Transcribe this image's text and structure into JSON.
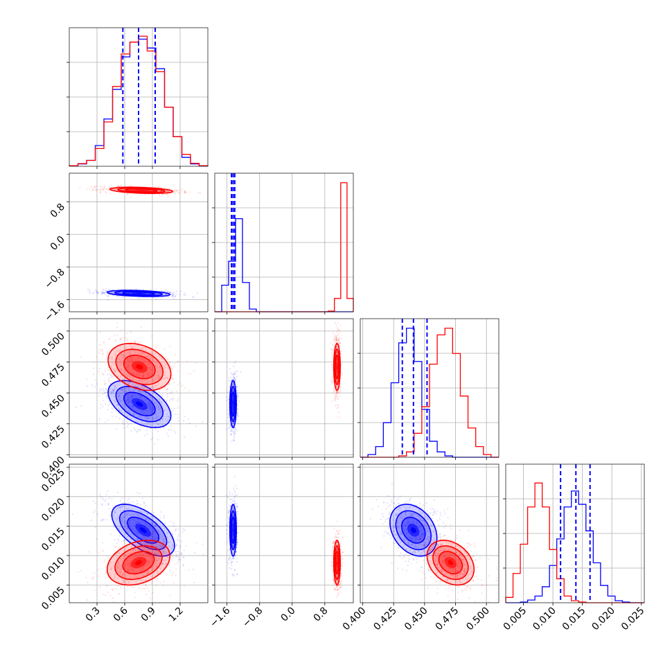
{
  "chart_data": {
    "type": "corner",
    "grid": true,
    "series": [
      {
        "color": "#0000ff"
      },
      {
        "color": "#ff0000"
      }
    ],
    "params": [
      {
        "range": [
          0.0,
          1.5
        ],
        "ticks": [
          0.3,
          0.6,
          0.9,
          1.2
        ],
        "tick_labels": [
          "0.3",
          "0.6",
          "0.9",
          "1.2"
        ]
      },
      {
        "range": [
          -1.9,
          1.5
        ],
        "ticks": [
          -1.6,
          -0.8,
          0.0,
          0.8
        ],
        "tick_labels": [
          "−1.6",
          "−0.8",
          "0.0",
          "0.8"
        ]
      },
      {
        "range": [
          0.398,
          0.51
        ],
        "ticks": [
          0.4,
          0.425,
          0.45,
          0.475,
          0.5
        ],
        "tick_labels": [
          "0.400",
          "0.425",
          "0.450",
          "0.475",
          "0.500"
        ]
      },
      {
        "range": [
          0.002,
          0.0255
        ],
        "ticks": [
          0.005,
          0.01,
          0.015,
          0.02,
          0.025
        ],
        "tick_labels": [
          "0.005",
          "0.010",
          "0.015",
          "0.020",
          "0.025"
        ]
      }
    ],
    "quantiles_blue": [
      [
        0.58,
        0.75,
        0.93
      ],
      [
        -1.49,
        -1.45,
        -1.41
      ],
      [
        0.432,
        0.441,
        0.452
      ],
      [
        0.0113,
        0.0139,
        0.0163
      ]
    ],
    "histograms": [
      {
        "ymax": 45,
        "blue": [
          0.2,
          0.8,
          2,
          7,
          16,
          26,
          37,
          42,
          43,
          40,
          33,
          20,
          10,
          3,
          0.8,
          0.1
        ],
        "red": [
          0.2,
          0.9,
          2,
          6,
          15,
          27,
          38,
          42,
          44,
          39,
          32,
          20,
          10,
          4,
          1,
          0.2
        ]
      },
      {
        "ymax": 100,
        "blue": [
          0,
          20,
          38,
          70,
          22,
          2,
          0,
          0,
          0,
          0,
          0,
          0,
          0,
          0,
          0,
          0,
          0,
          0,
          0,
          0
        ],
        "red": [
          0,
          0,
          0,
          0,
          0,
          0,
          0,
          0,
          0,
          0,
          0,
          0,
          0,
          0,
          0,
          0,
          0,
          0,
          0.5,
          10,
          97,
          10
        ]
      },
      {
        "ymax": 100,
        "blue": [
          0,
          2,
          8,
          26,
          56,
          86,
          97,
          72,
          36,
          12,
          4,
          1,
          0,
          0,
          0,
          0,
          0,
          0
        ],
        "red": [
          0,
          0,
          0,
          0,
          0,
          1,
          4,
          18,
          38,
          70,
          92,
          97,
          78,
          46,
          22,
          8,
          2,
          0
        ]
      },
      {
        "ymax": 100,
        "blue": [
          0,
          0,
          0.5,
          2,
          5,
          12,
          28,
          48,
          72,
          84,
          74,
          54,
          30,
          13,
          5,
          1.5,
          0.5,
          0,
          0
        ],
        "red": [
          4,
          22,
          44,
          72,
          90,
          72,
          40,
          18,
          5,
          1.5,
          0.5,
          0,
          0,
          0,
          0,
          0,
          0,
          0,
          0
        ]
      }
    ],
    "blobs": {
      "1-0": [
        {
          "color": "#0000ff",
          "mean": [
            0.75,
            -1.45
          ],
          "sd": [
            0.17,
            0.038
          ],
          "rho": -0.35
        },
        {
          "color": "#ff0000",
          "mean": [
            0.78,
            1.08
          ],
          "sd": [
            0.17,
            0.038
          ],
          "rho": -0.35
        }
      ],
      "2-0": [
        {
          "color": "#0000ff",
          "mean": [
            0.76,
            0.441
          ],
          "sd": [
            0.17,
            0.0095
          ],
          "rho": -0.5
        },
        {
          "color": "#ff0000",
          "mean": [
            0.76,
            0.471
          ],
          "sd": [
            0.17,
            0.0095
          ],
          "rho": -0.3
        }
      ],
      "2-1": [
        {
          "color": "#0000ff",
          "mean": [
            -1.45,
            0.441
          ],
          "sd": [
            0.04,
            0.0095
          ],
          "rho": 0.0
        },
        {
          "color": "#ff0000",
          "mean": [
            1.1,
            0.471
          ],
          "sd": [
            0.04,
            0.0095
          ],
          "rho": 0.0
        }
      ],
      "3-0": [
        {
          "color": "#0000ff",
          "mean": [
            0.8,
            0.0143
          ],
          "sd": [
            0.17,
            0.0022
          ],
          "rho": -0.6
        },
        {
          "color": "#ff0000",
          "mean": [
            0.75,
            0.0088
          ],
          "sd": [
            0.17,
            0.0019
          ],
          "rho": 0.3
        }
      ],
      "3-1": [
        {
          "color": "#0000ff",
          "mean": [
            -1.45,
            0.0143
          ],
          "sd": [
            0.04,
            0.0022
          ],
          "rho": 0.0
        },
        {
          "color": "#ff0000",
          "mean": [
            1.1,
            0.0088
          ],
          "sd": [
            0.04,
            0.0019
          ],
          "rho": 0.0
        }
      ],
      "3-2": [
        {
          "color": "#0000ff",
          "mean": [
            0.441,
            0.0143
          ],
          "sd": [
            0.0095,
            0.0022
          ],
          "rho": -0.3
        },
        {
          "color": "#ff0000",
          "mean": [
            0.471,
            0.0088
          ],
          "sd": [
            0.0095,
            0.0019
          ],
          "rho": -0.3
        }
      ]
    }
  }
}
